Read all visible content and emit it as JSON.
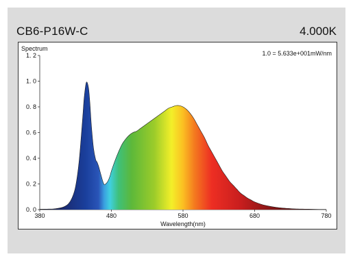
{
  "header": {
    "model": "CB6-P16W-C",
    "cct": "4.000K"
  },
  "chart_data": {
    "type": "area",
    "title": "",
    "ylabel": "Spectrum",
    "xlabel": "Wavelength(nm)",
    "scale_note": "1.0 =  5.633e+001mW/nm",
    "xlim": [
      380,
      780
    ],
    "ylim": [
      0,
      1.2
    ],
    "x_ticks": [
      380,
      480,
      580,
      680,
      780
    ],
    "x_tick_labels": [
      "380",
      "480",
      "580",
      "680",
      "780"
    ],
    "y_ticks": [
      0,
      0.2,
      0.4,
      0.6,
      0.8,
      1.0,
      1.2
    ],
    "y_tick_labels": [
      "0. 0",
      "0. 2",
      "0. 4",
      "0. 6",
      "0. 8",
      "1. 0",
      "1. 2"
    ],
    "grid": false,
    "fill": "visible-spectrum gradient",
    "series": [
      {
        "x": [
          380,
          390,
          400,
          410,
          415,
          420,
          425,
          430,
          435,
          440,
          442,
          445,
          448,
          450,
          452,
          455,
          458,
          460,
          462,
          465,
          468,
          470,
          472,
          475,
          478,
          480,
          485,
          490,
          495,
          500,
          505,
          510,
          515,
          520,
          525,
          530,
          535,
          540,
          545,
          550,
          555,
          560,
          565,
          570,
          575,
          580,
          585,
          590,
          595,
          600,
          605,
          610,
          615,
          620,
          625,
          630,
          635,
          640,
          645,
          650,
          655,
          660,
          665,
          670,
          675,
          680,
          690,
          700,
          710,
          720,
          730,
          740,
          750,
          760,
          770,
          780
        ],
        "y": [
          0.003,
          0.004,
          0.006,
          0.015,
          0.025,
          0.045,
          0.09,
          0.18,
          0.38,
          0.72,
          0.87,
          0.99,
          0.95,
          0.83,
          0.66,
          0.48,
          0.39,
          0.37,
          0.34,
          0.28,
          0.22,
          0.195,
          0.2,
          0.22,
          0.26,
          0.3,
          0.38,
          0.45,
          0.51,
          0.55,
          0.58,
          0.6,
          0.61,
          0.63,
          0.65,
          0.67,
          0.69,
          0.71,
          0.73,
          0.75,
          0.77,
          0.79,
          0.8,
          0.81,
          0.81,
          0.8,
          0.78,
          0.75,
          0.71,
          0.66,
          0.61,
          0.56,
          0.5,
          0.45,
          0.4,
          0.35,
          0.3,
          0.26,
          0.22,
          0.19,
          0.16,
          0.13,
          0.11,
          0.09,
          0.075,
          0.06,
          0.04,
          0.027,
          0.018,
          0.012,
          0.008,
          0.005,
          0.004,
          0.003,
          0.002,
          0.002
        ]
      }
    ]
  }
}
